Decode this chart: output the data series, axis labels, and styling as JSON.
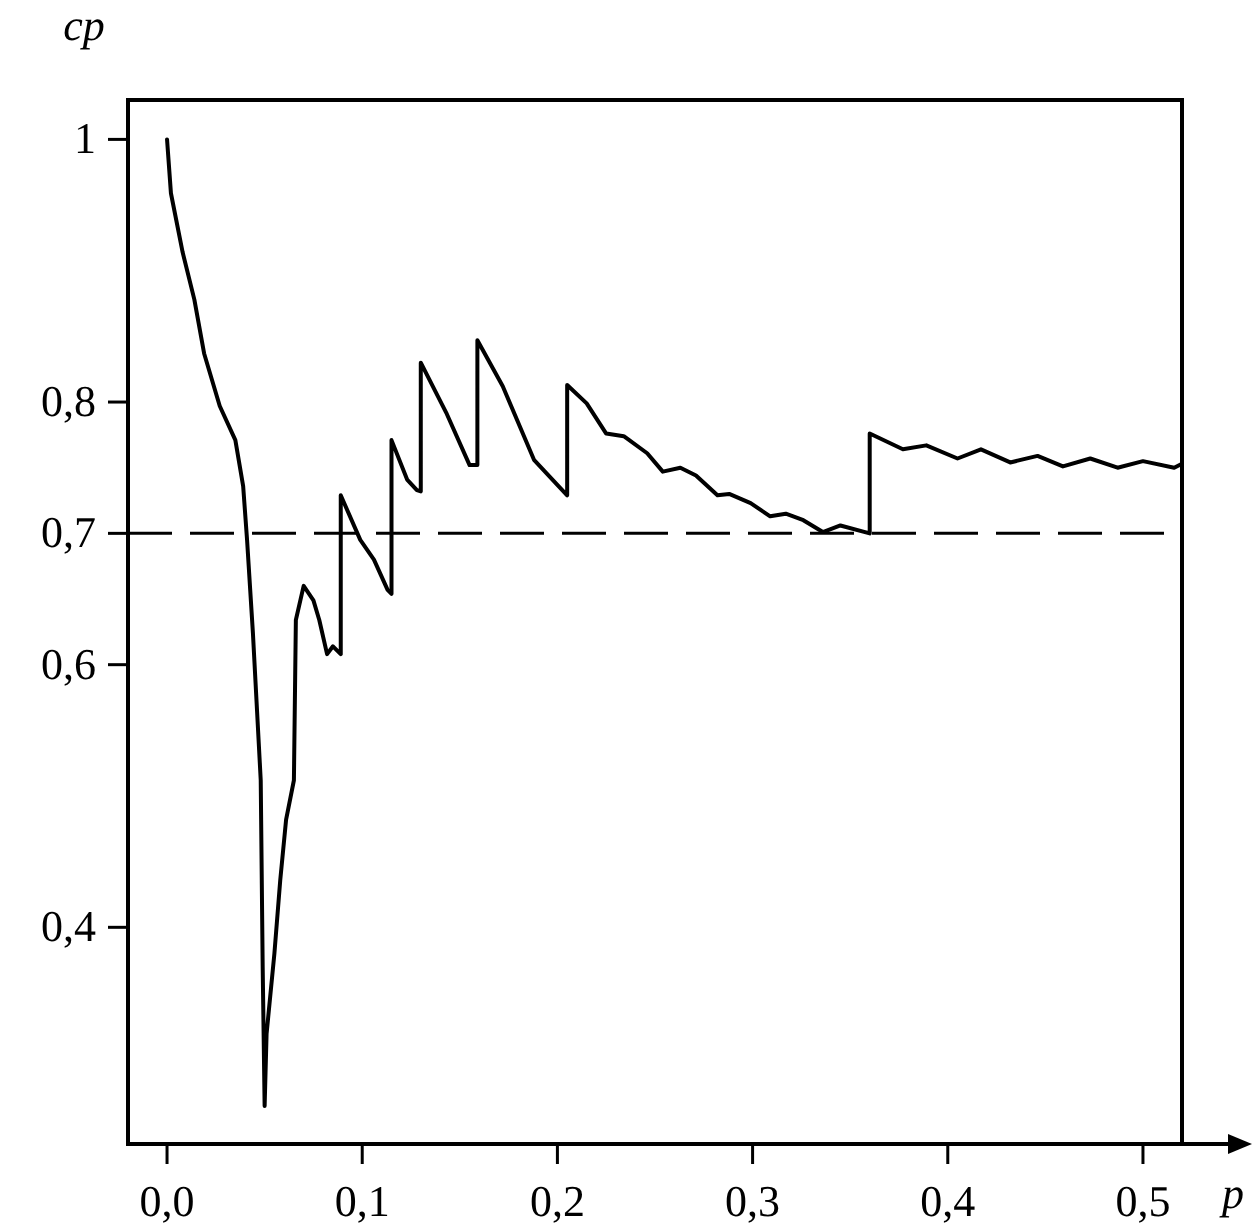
{
  "chart_data": {
    "type": "line",
    "xlabel": "p",
    "ylabel": "cp",
    "xlim": [
      -0.02,
      0.52
    ],
    "ylim": [
      0.235,
      1.03
    ],
    "xticks": [
      {
        "value": 0,
        "label": "0,0"
      },
      {
        "value": 0.1,
        "label": "0,1"
      },
      {
        "value": 0.2,
        "label": "0,2"
      },
      {
        "value": 0.3,
        "label": "0,3"
      },
      {
        "value": 0.4,
        "label": "0,4"
      },
      {
        "value": 0.5,
        "label": "0,5"
      }
    ],
    "yticks": [
      {
        "value": 0.4,
        "label": "0,4"
      },
      {
        "value": 0.6,
        "label": "0,6"
      },
      {
        "value": 0.7,
        "label": "0,7"
      },
      {
        "value": 0.8,
        "label": "0,8"
      },
      1
    ],
    "grid": false,
    "marker": "none",
    "line_style": "solid",
    "ref_lines": [
      {
        "axis": "y",
        "value": 0.7,
        "line_style": "dashed",
        "color": "#000000"
      }
    ],
    "series": [
      {
        "color": "#000000",
        "x": [
          0,
          0.002,
          0.008,
          0.014,
          0.019,
          0.027,
          0.035,
          0.039,
          0.041,
          0.044,
          0.048,
          0.049,
          0.05,
          0.051,
          0.055,
          0.058,
          0.061,
          0.065,
          0.066,
          0.07,
          0.075,
          0.078,
          0.082,
          0.085,
          0.089,
          0.089,
          0.099,
          0.106,
          0.113,
          0.115,
          0.115,
          0.123,
          0.128,
          0.13,
          0.13,
          0.143,
          0.155,
          0.159,
          0.159,
          0.172,
          0.188,
          0.205,
          0.205,
          0.215,
          0.225,
          0.234,
          0.246,
          0.254,
          0.263,
          0.271,
          0.282,
          0.288,
          0.299,
          0.309,
          0.317,
          0.326,
          0.336,
          0.345,
          0.36,
          0.36,
          0.377,
          0.389,
          0.405,
          0.417,
          0.432,
          0.446,
          0.459,
          0.473,
          0.487,
          0.5,
          0.516,
          0.52
        ],
        "values": [
          1,
          0.959,
          0.914,
          0.878,
          0.837,
          0.797,
          0.771,
          0.736,
          0.695,
          0.624,
          0.512,
          0.37,
          0.264,
          0.319,
          0.38,
          0.436,
          0.482,
          0.512,
          0.634,
          0.66,
          0.649,
          0.634,
          0.608,
          0.614,
          0.608,
          0.729,
          0.695,
          0.68,
          0.657,
          0.654,
          0.771,
          0.741,
          0.733,
          0.732,
          0.83,
          0.792,
          0.752,
          0.752,
          0.847,
          0.812,
          0.756,
          0.729,
          0.813,
          0.799,
          0.776,
          0.774,
          0.761,
          0.747,
          0.75,
          0.744,
          0.729,
          0.73,
          0.723,
          0.713,
          0.715,
          0.71,
          0.701,
          0.706,
          0.7,
          0.776,
          0.764,
          0.767,
          0.757,
          0.764,
          0.754,
          0.759,
          0.751,
          0.757,
          0.75,
          0.755,
          0.75,
          0.753
        ]
      }
    ]
  }
}
